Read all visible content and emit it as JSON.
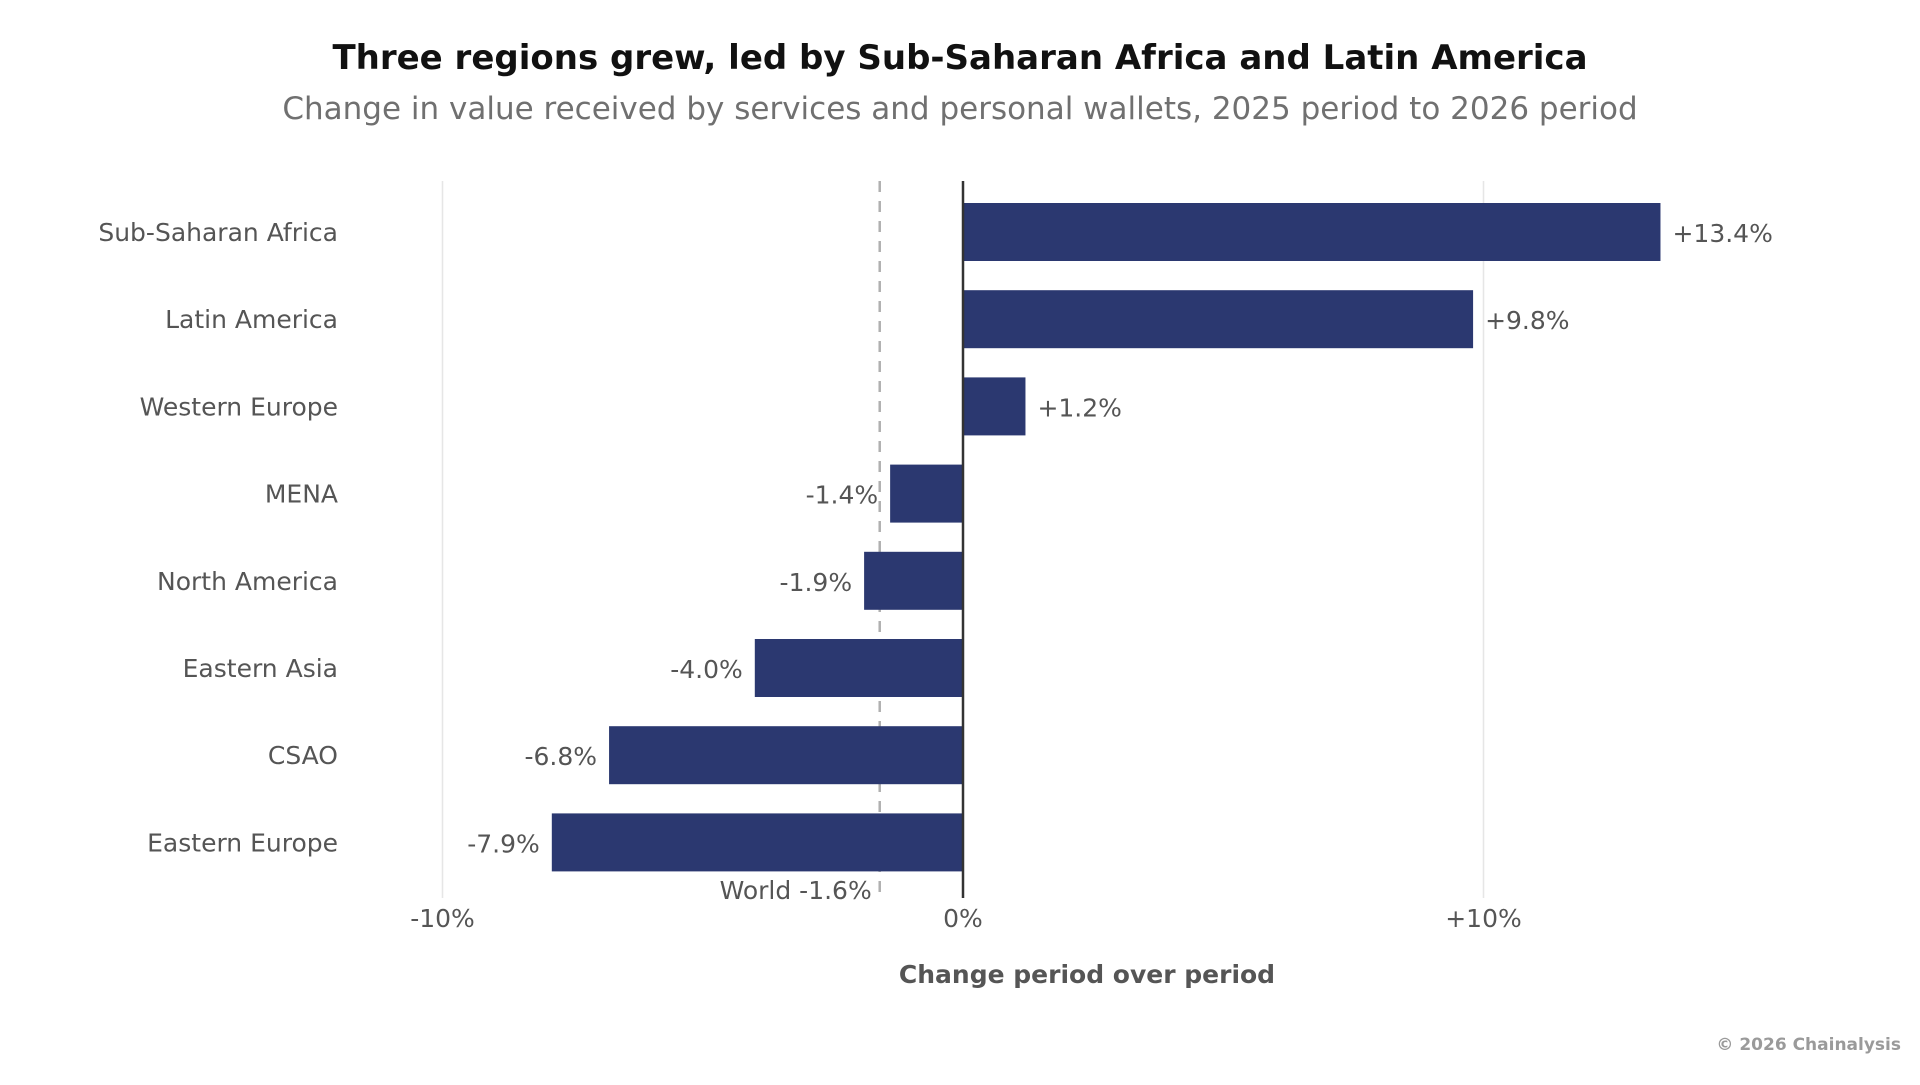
{
  "header": {
    "title": "Three regions grew, led by Sub-Saharan Africa and Latin America",
    "subtitle": "Change in value received by services and personal wallets, 2025 period to 2026 period"
  },
  "footer": {
    "credit": "© 2026 Chainalysis"
  },
  "chart_data": {
    "type": "bar",
    "orientation": "horizontal",
    "title": "Three regions grew, led by Sub-Saharan Africa and Latin America",
    "subtitle": "Change in value received by services and personal wallets, 2025 period to 2026 period",
    "xlabel": "Change period over period",
    "ylabel": "",
    "categories": [
      "Sub-Saharan Africa",
      "Latin America",
      "Western Europe",
      "MENA",
      "North America",
      "Eastern Asia",
      "CSAO",
      "Eastern Europe"
    ],
    "values": [
      13.4,
      9.8,
      1.2,
      -1.4,
      -1.9,
      -4.0,
      -6.8,
      -7.9
    ],
    "data_labels": [
      "+13.4%",
      "+9.8%",
      "+1.2%",
      "-1.4%",
      "-1.9%",
      "-4.0%",
      "-6.8%",
      "-7.9%"
    ],
    "xlim": [
      -10,
      15
    ],
    "xticks": [
      -10,
      0,
      10
    ],
    "xtick_labels": [
      "-10%",
      "0%",
      "+10%"
    ],
    "reference_line": {
      "value": -1.6,
      "label": "World -1.6%",
      "style": "dashed"
    },
    "grid": "vertical",
    "bar_color": "#2b3870",
    "colors": {
      "grid": "#e6e6e6",
      "zero_line": "#333333",
      "reference_line": "#b0b0b0",
      "text": "#555555"
    }
  }
}
